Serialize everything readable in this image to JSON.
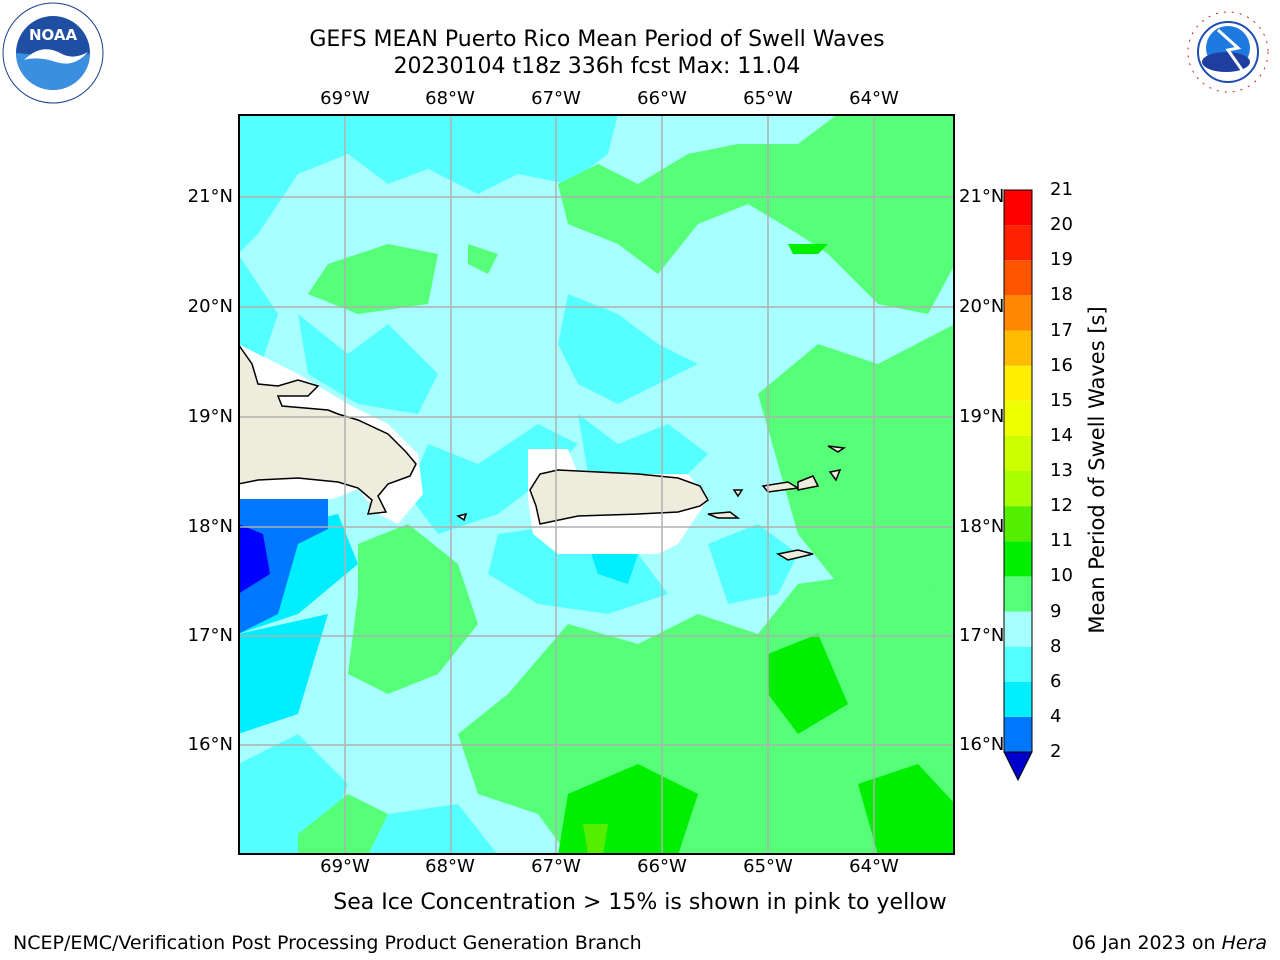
{
  "title": {
    "line1": "GEFS MEAN Puerto Rico Mean Period of Swell Waves",
    "line2": "20230104 t18z 336h fcst   Max: 11.04"
  },
  "logos": {
    "left": {
      "name": "noaa-logo",
      "text": "NOAA"
    },
    "right": {
      "name": "nws-logo",
      "text": "NATIONAL WEATHER SERVICE"
    }
  },
  "map": {
    "lon_ticks": [
      "69°W",
      "68°W",
      "67°W",
      "66°W",
      "65°W",
      "64°W"
    ],
    "lat_ticks": [
      "21°N",
      "20°N",
      "19°N",
      "18°N",
      "17°N",
      "16°N"
    ],
    "land_color": "#eeecdc",
    "grid_color": "#b0b0b0"
  },
  "colorbar": {
    "label": "Mean Period of Swell Waves [s]",
    "ticks": [
      "2",
      "4",
      "6",
      "8",
      "9",
      "10",
      "11",
      "12",
      "13",
      "14",
      "15",
      "16",
      "17",
      "18",
      "19",
      "20",
      "21"
    ],
    "colors": [
      "#0000ff",
      "#0077ff",
      "#00eeff",
      "#55ffff",
      "#a8ffff",
      "#55ff77",
      "#00ee00",
      "#55ee00",
      "#aaff00",
      "#ccff00",
      "#eeff00",
      "#ffee00",
      "#ffbb00",
      "#ff8800",
      "#ff5500",
      "#ff2200",
      "#ff0000"
    ],
    "under_color": "#0000cc"
  },
  "note": "Sea Ice Concentration > 15% is shown in pink to yellow",
  "footer": {
    "left": "NCEP/EMC/Verification Post Processing Product Generation Branch",
    "date": "06 Jan 2023 on",
    "machine": "Hera"
  }
}
